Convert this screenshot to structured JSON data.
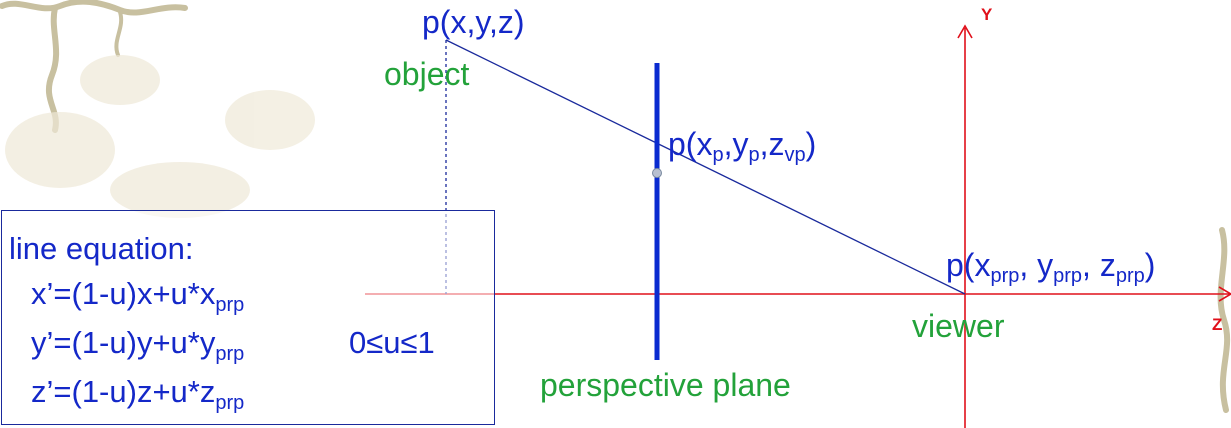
{
  "labels": {
    "point_object": "p(x,y,z)",
    "object": "object",
    "projected_base": "p(x",
    "projected_sub1": "p",
    "projected_mid1": ",y",
    "projected_sub2": "p",
    "projected_mid2": ",z",
    "projected_sub3": "vp",
    "projected_end": ")",
    "prp_base": "p(x",
    "prp_sub1": "prp",
    "prp_mid1": ", y",
    "prp_sub2": "prp",
    "prp_mid2": ", z",
    "prp_sub3": "prp",
    "prp_end": ")",
    "viewer": "viewer",
    "perspective_plane": "perspective plane",
    "y_axis": "Y",
    "z_axis": "Z"
  },
  "equation_box": {
    "title": "line equation:",
    "x_main": "x’=(1-u)x+u*x",
    "x_sub": "prp",
    "y_main": "y’=(1-u)y+u*y",
    "y_sub": "prp",
    "z_main": "z’=(1-u)z+u*z",
    "z_sub": "prp",
    "range": "0≤u≤1"
  },
  "colors": {
    "text_blue": "#1428c8",
    "text_green": "#23a23a",
    "axis_red": "#e0101a",
    "plane_blue": "#0a2bd0",
    "ray_blue": "#1a2a9c"
  }
}
